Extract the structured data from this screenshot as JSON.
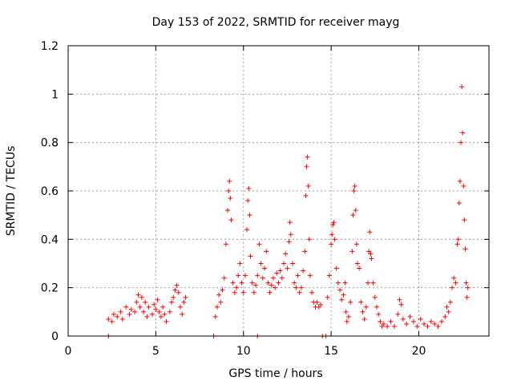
{
  "chart_data": {
    "type": "scatter",
    "title": "Day 153 of 2022, SRMTID for receiver mayg",
    "xlabel": "GPS time / hours",
    "ylabel": "SRMTID / TECUs",
    "xlim": [
      0,
      24
    ],
    "ylim": [
      0,
      1.2
    ],
    "xticks": [
      0,
      5,
      10,
      15,
      20
    ],
    "xtick_labels": [
      "0",
      "5",
      "10",
      "15",
      "20"
    ],
    "yticks": [
      0,
      0.2,
      0.4,
      0.6,
      0.8,
      1.0,
      1.2
    ],
    "ytick_labels": [
      "0",
      "0.2",
      "0.4",
      "0.6",
      "0.8",
      "1",
      "1.2"
    ],
    "grid": true,
    "marker": "+",
    "color": "#ff0000",
    "series": [
      {
        "name": "SRMTID",
        "points": [
          [
            2.3,
            0.0
          ],
          [
            8.3,
            0.0
          ],
          [
            10.8,
            0.0
          ],
          [
            14.5,
            0.0
          ],
          [
            14.7,
            0.0
          ],
          [
            2.3,
            0.07
          ],
          [
            2.5,
            0.06
          ],
          [
            2.6,
            0.09
          ],
          [
            2.8,
            0.08
          ],
          [
            3.0,
            0.1
          ],
          [
            3.1,
            0.07
          ],
          [
            3.3,
            0.12
          ],
          [
            3.5,
            0.09
          ],
          [
            3.6,
            0.11
          ],
          [
            3.8,
            0.1
          ],
          [
            3.9,
            0.14
          ],
          [
            4.0,
            0.17
          ],
          [
            4.1,
            0.12
          ],
          [
            4.2,
            0.16
          ],
          [
            4.3,
            0.1
          ],
          [
            4.4,
            0.14
          ],
          [
            4.5,
            0.08
          ],
          [
            4.6,
            0.12
          ],
          [
            4.8,
            0.09
          ],
          [
            4.9,
            0.13
          ],
          [
            5.0,
            0.11
          ],
          [
            5.1,
            0.15
          ],
          [
            5.2,
            0.1
          ],
          [
            5.3,
            0.08
          ],
          [
            5.4,
            0.12
          ],
          [
            5.5,
            0.09
          ],
          [
            5.6,
            0.06
          ],
          [
            5.8,
            0.1
          ],
          [
            5.9,
            0.14
          ],
          [
            6.0,
            0.16
          ],
          [
            6.1,
            0.19
          ],
          [
            6.2,
            0.21
          ],
          [
            6.3,
            0.18
          ],
          [
            6.4,
            0.12
          ],
          [
            6.5,
            0.09
          ],
          [
            6.6,
            0.14
          ],
          [
            6.7,
            0.16
          ],
          [
            8.4,
            0.08
          ],
          [
            8.5,
            0.12
          ],
          [
            8.6,
            0.17
          ],
          [
            8.7,
            0.14
          ],
          [
            8.8,
            0.19
          ],
          [
            8.9,
            0.24
          ],
          [
            9.0,
            0.38
          ],
          [
            9.1,
            0.52
          ],
          [
            9.15,
            0.6
          ],
          [
            9.2,
            0.64
          ],
          [
            9.25,
            0.57
          ],
          [
            9.3,
            0.48
          ],
          [
            9.4,
            0.22
          ],
          [
            9.5,
            0.18
          ],
          [
            9.6,
            0.2
          ],
          [
            9.7,
            0.25
          ],
          [
            9.8,
            0.3
          ],
          [
            9.9,
            0.22
          ],
          [
            10.0,
            0.18
          ],
          [
            10.1,
            0.25
          ],
          [
            10.2,
            0.44
          ],
          [
            10.25,
            0.56
          ],
          [
            10.3,
            0.61
          ],
          [
            10.35,
            0.5
          ],
          [
            10.4,
            0.33
          ],
          [
            10.5,
            0.22
          ],
          [
            10.6,
            0.18
          ],
          [
            10.7,
            0.21
          ],
          [
            10.8,
            0.25
          ],
          [
            10.9,
            0.38
          ],
          [
            11.0,
            0.3
          ],
          [
            11.1,
            0.24
          ],
          [
            11.2,
            0.28
          ],
          [
            11.3,
            0.35
          ],
          [
            11.4,
            0.22
          ],
          [
            11.5,
            0.18
          ],
          [
            11.6,
            0.21
          ],
          [
            11.7,
            0.24
          ],
          [
            11.8,
            0.2
          ],
          [
            11.9,
            0.26
          ],
          [
            12.0,
            0.22
          ],
          [
            12.1,
            0.27
          ],
          [
            12.2,
            0.24
          ],
          [
            12.3,
            0.3
          ],
          [
            12.4,
            0.34
          ],
          [
            12.5,
            0.28
          ],
          [
            12.6,
            0.39
          ],
          [
            12.65,
            0.47
          ],
          [
            12.7,
            0.42
          ],
          [
            12.8,
            0.3
          ],
          [
            12.9,
            0.22
          ],
          [
            13.0,
            0.2
          ],
          [
            13.1,
            0.25
          ],
          [
            13.2,
            0.18
          ],
          [
            13.3,
            0.2
          ],
          [
            13.4,
            0.27
          ],
          [
            13.5,
            0.35
          ],
          [
            13.55,
            0.58
          ],
          [
            13.6,
            0.7
          ],
          [
            13.65,
            0.74
          ],
          [
            13.7,
            0.62
          ],
          [
            13.75,
            0.4
          ],
          [
            13.8,
            0.25
          ],
          [
            13.9,
            0.18
          ],
          [
            14.0,
            0.14
          ],
          [
            14.1,
            0.12
          ],
          [
            14.2,
            0.14
          ],
          [
            14.3,
            0.12
          ],
          [
            14.4,
            0.13
          ],
          [
            14.8,
            0.16
          ],
          [
            14.9,
            0.25
          ],
          [
            15.0,
            0.38
          ],
          [
            15.05,
            0.42
          ],
          [
            15.1,
            0.46
          ],
          [
            15.15,
            0.47
          ],
          [
            15.2,
            0.4
          ],
          [
            15.3,
            0.28
          ],
          [
            15.4,
            0.22
          ],
          [
            15.5,
            0.19
          ],
          [
            15.6,
            0.15
          ],
          [
            15.7,
            0.17
          ],
          [
            15.8,
            0.22
          ],
          [
            15.85,
            0.1
          ],
          [
            15.9,
            0.06
          ],
          [
            16.0,
            0.08
          ],
          [
            16.1,
            0.14
          ],
          [
            16.2,
            0.35
          ],
          [
            16.25,
            0.5
          ],
          [
            16.3,
            0.6
          ],
          [
            16.35,
            0.62
          ],
          [
            16.4,
            0.52
          ],
          [
            16.45,
            0.38
          ],
          [
            16.5,
            0.3
          ],
          [
            16.6,
            0.28
          ],
          [
            16.7,
            0.14
          ],
          [
            16.8,
            0.1
          ],
          [
            16.9,
            0.07
          ],
          [
            17.0,
            0.12
          ],
          [
            17.1,
            0.22
          ],
          [
            17.15,
            0.35
          ],
          [
            17.2,
            0.43
          ],
          [
            17.25,
            0.34
          ],
          [
            17.3,
            0.32
          ],
          [
            17.4,
            0.22
          ],
          [
            17.5,
            0.16
          ],
          [
            17.6,
            0.12
          ],
          [
            17.7,
            0.09
          ],
          [
            17.8,
            0.06
          ],
          [
            17.9,
            0.04
          ],
          [
            18.0,
            0.05
          ],
          [
            18.2,
            0.04
          ],
          [
            18.4,
            0.06
          ],
          [
            18.6,
            0.04
          ],
          [
            18.8,
            0.09
          ],
          [
            18.9,
            0.15
          ],
          [
            19.0,
            0.13
          ],
          [
            19.1,
            0.07
          ],
          [
            19.3,
            0.05
          ],
          [
            19.5,
            0.08
          ],
          [
            19.7,
            0.06
          ],
          [
            19.9,
            0.04
          ],
          [
            20.1,
            0.07
          ],
          [
            20.3,
            0.05
          ],
          [
            20.5,
            0.04
          ],
          [
            20.7,
            0.06
          ],
          [
            20.9,
            0.05
          ],
          [
            21.1,
            0.04
          ],
          [
            21.3,
            0.06
          ],
          [
            21.5,
            0.08
          ],
          [
            21.6,
            0.12
          ],
          [
            21.7,
            0.1
          ],
          [
            21.8,
            0.14
          ],
          [
            21.9,
            0.2
          ],
          [
            22.0,
            0.24
          ],
          [
            22.1,
            0.22
          ],
          [
            22.2,
            0.38
          ],
          [
            22.25,
            0.4
          ],
          [
            22.3,
            0.55
          ],
          [
            22.35,
            0.64
          ],
          [
            22.4,
            0.8
          ],
          [
            22.45,
            1.03
          ],
          [
            22.5,
            0.84
          ],
          [
            22.55,
            0.62
          ],
          [
            22.6,
            0.48
          ],
          [
            22.65,
            0.36
          ],
          [
            22.7,
            0.22
          ],
          [
            22.75,
            0.16
          ],
          [
            22.8,
            0.2
          ]
        ]
      }
    ]
  }
}
